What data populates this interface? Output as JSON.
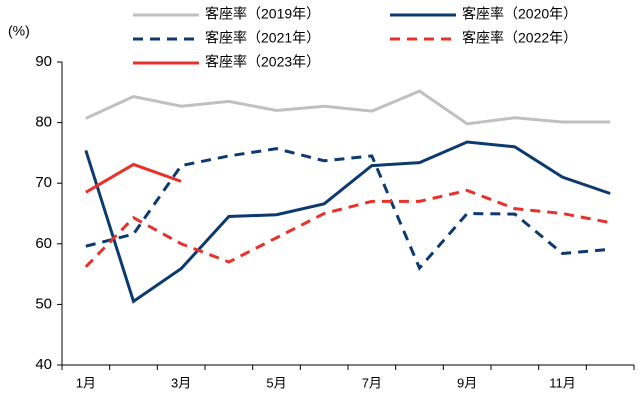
{
  "chart_data": {
    "type": "line",
    "y_unit": "(%)",
    "categories": [
      "1月",
      null,
      "3月",
      null,
      "5月",
      null,
      "7月",
      null,
      "9月",
      null,
      "11月",
      null
    ],
    "ylim": [
      40,
      90
    ],
    "yticks": [
      40,
      50,
      60,
      70,
      80,
      90
    ],
    "series": [
      {
        "name": "客座率（2019年）",
        "color": "#c0c0c0",
        "dash": false,
        "values": [
          80.7,
          84.3,
          82.7,
          83.5,
          82.0,
          82.7,
          81.9,
          85.2,
          79.8,
          80.8,
          80.1,
          80.1
        ]
      },
      {
        "name": "客座率（2020年）",
        "color": "#0d3a6e",
        "dash": false,
        "values": [
          75.4,
          50.5,
          55.9,
          64.5,
          64.8,
          66.6,
          72.9,
          73.4,
          76.8,
          76.0,
          71.0,
          68.3
        ]
      },
      {
        "name": "客座率（2021年）",
        "color": "#0d3a6e",
        "dash": true,
        "values": [
          59.6,
          61.6,
          72.9,
          74.5,
          75.7,
          73.7,
          74.5,
          56.0,
          65.0,
          64.9,
          58.4,
          59.1
        ]
      },
      {
        "name": "客座率（2022年）",
        "color": "#e8312a",
        "dash": true,
        "values": [
          56.2,
          64.3,
          60.0,
          57.0,
          61.0,
          65.0,
          67.0,
          67.0,
          68.8,
          65.8,
          65.0,
          63.5
        ]
      },
      {
        "name": "客座率（2023年）",
        "color": "#e8312a",
        "dash": false,
        "values": [
          68.5,
          73.1,
          70.3,
          null,
          null,
          null,
          null,
          null,
          null,
          null,
          null,
          null
        ]
      }
    ]
  }
}
